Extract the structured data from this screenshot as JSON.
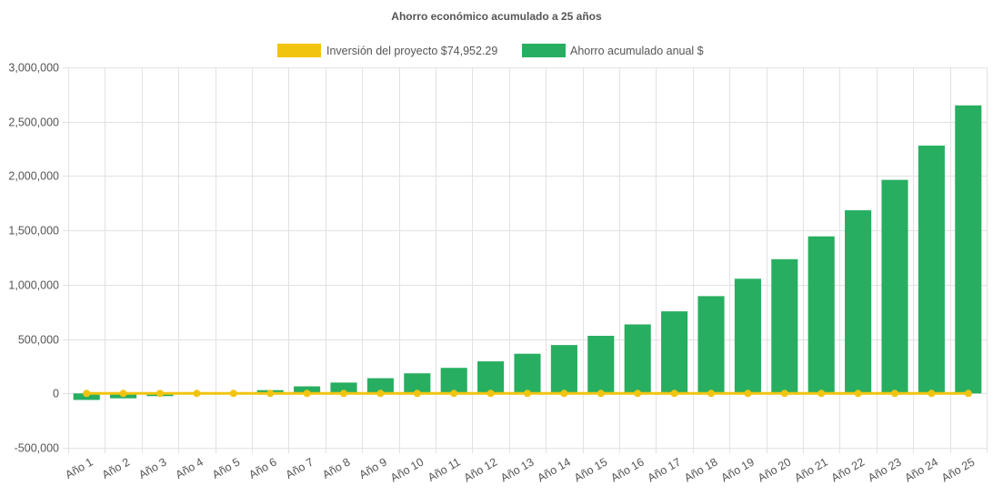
{
  "chart_data": {
    "type": "bar",
    "title": "Ahorro económico acumulado a 25 años",
    "categories": [
      "Año 1",
      "Año 2",
      "Año 3",
      "Año 4",
      "Año 5",
      "Año 6",
      "Año 7",
      "Año 8",
      "Año 9",
      "Año 10",
      "Año 11",
      "Año 12",
      "Año 13",
      "Año 14",
      "Año 15",
      "Año 16",
      "Año 17",
      "Año 18",
      "Año 19",
      "Año 20",
      "Año 21",
      "Año 22",
      "Año 23",
      "Año 24",
      "Año 25"
    ],
    "ylim": [
      -500000,
      3000000
    ],
    "yticks": [
      3000000,
      2500000,
      2000000,
      1500000,
      1000000,
      500000,
      0,
      -500000
    ],
    "ytick_labels": [
      "3,000,000",
      "2,500,000",
      "2,000,000",
      "1,500,000",
      "1,000,000",
      "500,000",
      "0",
      "-500,000"
    ],
    "grid": true,
    "legend_position": "top",
    "series": [
      {
        "name": "Inversión del proyecto $74,952.29",
        "type": "line",
        "color": "#f1c40f",
        "values": [
          0,
          0,
          0,
          0,
          0,
          0,
          0,
          0,
          0,
          0,
          0,
          0,
          0,
          0,
          0,
          0,
          0,
          0,
          0,
          0,
          0,
          0,
          0,
          0,
          0
        ]
      },
      {
        "name": "Ahorro acumulado anual $",
        "type": "bar",
        "color": "#27ae60",
        "values": [
          -60000,
          -45000,
          -25000,
          -3000,
          -1000,
          30000,
          65000,
          100000,
          140000,
          185000,
          235000,
          295000,
          365000,
          445000,
          530000,
          635000,
          755000,
          895000,
          1055000,
          1235000,
          1445000,
          1685000,
          1965000,
          2280000,
          2650000
        ]
      }
    ]
  }
}
